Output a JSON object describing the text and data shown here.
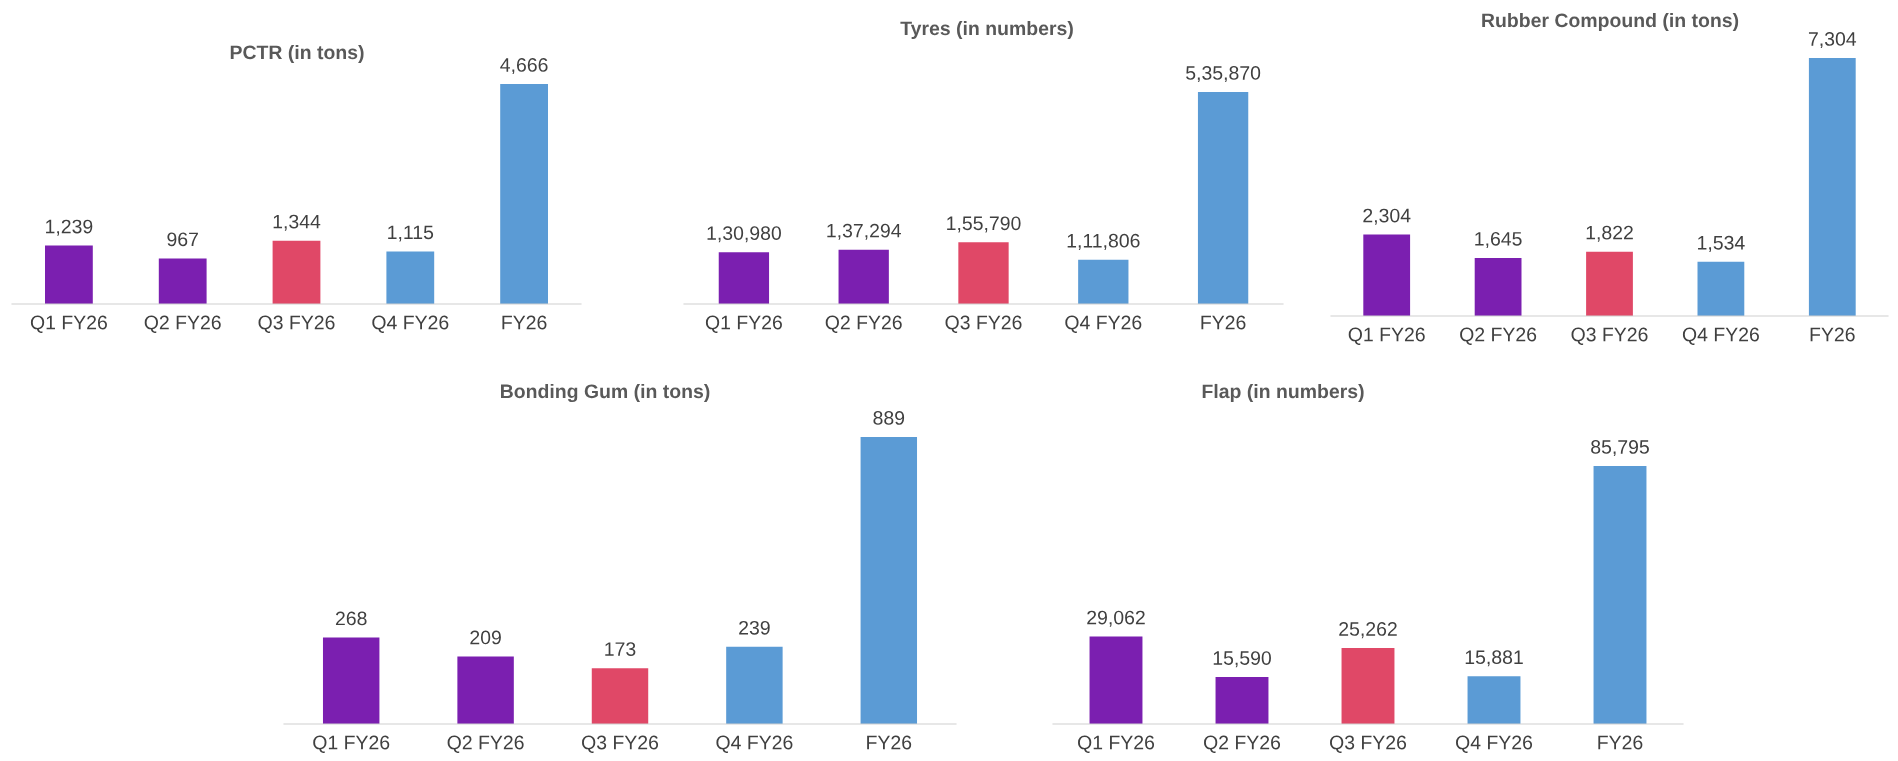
{
  "chart_data": [
    {
      "type": "bar",
      "title": "PCTR (in tons)",
      "categories": [
        "Q1 FY26",
        "Q2 FY26",
        "Q3 FY26",
        "Q4 FY26",
        "FY26"
      ],
      "values": [
        1239,
        967,
        1344,
        1115,
        4666
      ],
      "value_labels": [
        "1,239",
        "967",
        "1,344",
        "1,115",
        "4,666"
      ],
      "colors": [
        "#7b1fb0",
        "#7b1fb0",
        "#e04867",
        "#5b9bd5",
        "#5b9bd5"
      ],
      "grid": false,
      "legend": false
    },
    {
      "type": "bar",
      "title": "Tyres (in numbers)",
      "categories": [
        "Q1 FY26",
        "Q2 FY26",
        "Q3 FY26",
        "Q4 FY26",
        "FY26"
      ],
      "values": [
        130980,
        137294,
        155790,
        111806,
        535870
      ],
      "value_labels": [
        "1,30,980",
        "1,37,294",
        "1,55,790",
        "1,11,806",
        "5,35,870"
      ],
      "colors": [
        "#7b1fb0",
        "#7b1fb0",
        "#e04867",
        "#5b9bd5",
        "#5b9bd5"
      ],
      "grid": false,
      "legend": false
    },
    {
      "type": "bar",
      "title": "Rubber Compound (in tons)",
      "categories": [
        "Q1 FY26",
        "Q2 FY26",
        "Q3 FY26",
        "Q4 FY26",
        "FY26"
      ],
      "values": [
        2304,
        1645,
        1822,
        1534,
        7304
      ],
      "value_labels": [
        "2,304",
        "1,645",
        "1,822",
        "1,534",
        "7,304"
      ],
      "colors": [
        "#7b1fb0",
        "#7b1fb0",
        "#e04867",
        "#5b9bd5",
        "#5b9bd5"
      ],
      "grid": false,
      "legend": false
    },
    {
      "type": "bar",
      "title": "Bonding Gum (in tons)",
      "categories": [
        "Q1 FY26",
        "Q2 FY26",
        "Q3 FY26",
        "Q4 FY26",
        "FY26"
      ],
      "values": [
        268,
        209,
        173,
        239,
        889
      ],
      "value_labels": [
        "268",
        "209",
        "173",
        "239",
        "889"
      ],
      "colors": [
        "#7b1fb0",
        "#7b1fb0",
        "#e04867",
        "#5b9bd5",
        "#5b9bd5"
      ],
      "grid": false,
      "legend": false
    },
    {
      "type": "bar",
      "title": "Flap (in numbers)",
      "categories": [
        "Q1 FY26",
        "Q2 FY26",
        "Q3 FY26",
        "Q4 FY26",
        "FY26"
      ],
      "values": [
        29062,
        15590,
        25262,
        15881,
        85795
      ],
      "value_labels": [
        "29,062",
        "15,590",
        "25,262",
        "15,881",
        "85,795"
      ],
      "colors": [
        "#7b1fb0",
        "#7b1fb0",
        "#e04867",
        "#5b9bd5",
        "#5b9bd5"
      ],
      "grid": false,
      "legend": false
    }
  ]
}
